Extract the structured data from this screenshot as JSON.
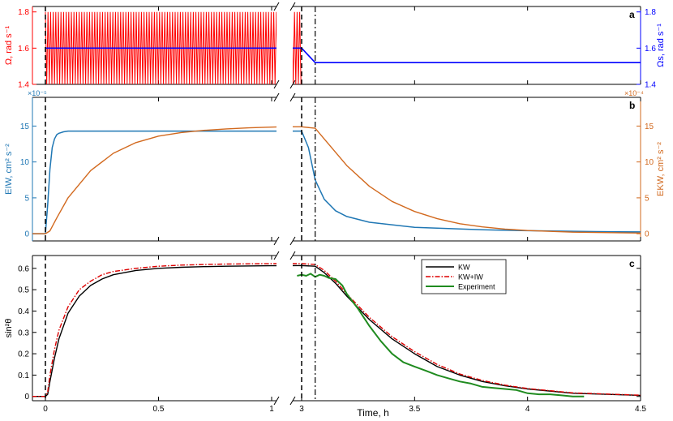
{
  "colors": {
    "omega": "#ff0000",
    "omega_s": "#0000ff",
    "e_iw": "#1f77b4",
    "e_kw": "#d2691e",
    "kw": "#000000",
    "kw_iw": "#dd0000",
    "experiment": "#1f8b1f",
    "axis": "#000000",
    "dash": "#000000"
  },
  "xaxis": {
    "label": "Time, h",
    "left_ticks": [
      "0",
      "0.5",
      "1"
    ],
    "right_ticks": [
      "3",
      "3.5",
      "4",
      "4.5"
    ],
    "left_range": [
      0,
      1.05
    ],
    "right_range": [
      2.98,
      4.5
    ],
    "break": true
  },
  "markers": {
    "dashed_times": [
      0,
      3.0
    ],
    "dashdot_times": [
      3.06
    ]
  },
  "chart_data": [
    {
      "type": "line",
      "panel": "a",
      "ylabel_left": "Ω, rad s⁻¹",
      "ylabel_right": "Ωs, rad s⁻¹",
      "ylim": [
        1.4,
        1.83
      ],
      "yticks_left": [
        "1.4",
        "1.6",
        "1.8"
      ],
      "yticks_right": [
        "1.4",
        "1.6",
        "1.8"
      ],
      "series": [
        {
          "name": "Ω",
          "style": "oscillating",
          "mean": 1.6,
          "amplitude": 0.2,
          "x_start": 0,
          "x_end": 3.0
        },
        {
          "name": "Ωs",
          "x": [
            0,
            3.0,
            3.06,
            4.5
          ],
          "y": [
            1.6,
            1.6,
            1.52,
            1.52
          ]
        }
      ]
    },
    {
      "type": "line",
      "panel": "b",
      "ylabel_left": "EIW, cm² s⁻²",
      "ylabel_right": "EKW, cm² s⁻²",
      "exponent_left": "×10⁻⁵",
      "exponent_right": "×10⁻⁴",
      "ylim": [
        -1,
        19
      ],
      "yticks_left": [
        "0",
        "5",
        "10",
        "15"
      ],
      "yticks_right": [
        "0",
        "5",
        "10",
        "15"
      ],
      "series": [
        {
          "name": "EIW",
          "x": [
            -0.06,
            0,
            0.01,
            0.02,
            0.03,
            0.04,
            0.05,
            0.06,
            0.08,
            0.1,
            0.2,
            0.5,
            1.0,
            1.05,
            2.98,
            3.0,
            3.03,
            3.06,
            3.1,
            3.15,
            3.2,
            3.3,
            3.5,
            3.8,
            4.0,
            4.3,
            4.5
          ],
          "y": [
            0,
            0,
            4,
            9,
            12,
            13.2,
            13.8,
            14.0,
            14.2,
            14.3,
            14.3,
            14.3,
            14.3,
            14.3,
            14.3,
            14.3,
            12,
            7.5,
            4.8,
            3.2,
            2.4,
            1.6,
            0.9,
            0.55,
            0.42,
            0.3,
            0.25
          ],
          "style": "thick"
        },
        {
          "name": "EKW",
          "x": [
            -0.06,
            0,
            0.02,
            0.05,
            0.1,
            0.2,
            0.3,
            0.4,
            0.5,
            0.6,
            0.7,
            0.8,
            0.9,
            1.0,
            1.05,
            2.98,
            3.0,
            3.06,
            3.1,
            3.2,
            3.3,
            3.4,
            3.5,
            3.6,
            3.7,
            3.8,
            3.9,
            4.0,
            4.2,
            4.5
          ],
          "y": [
            0,
            0,
            0.4,
            2.2,
            5.0,
            8.8,
            11.2,
            12.7,
            13.6,
            14.1,
            14.4,
            14.6,
            14.75,
            14.85,
            14.9,
            14.9,
            14.9,
            14.7,
            13.2,
            9.5,
            6.6,
            4.5,
            3.1,
            2.1,
            1.4,
            0.95,
            0.65,
            0.45,
            0.22,
            0.1
          ]
        }
      ]
    },
    {
      "type": "line",
      "panel": "c",
      "ylabel_left": "sin²θ",
      "ylim": [
        -0.02,
        0.66
      ],
      "yticks_left": [
        "0",
        "0.1",
        "0.2",
        "0.3",
        "0.4",
        "0.5",
        "0.6"
      ],
      "legend_placement": "top-right-inset",
      "series": [
        {
          "name": "KW",
          "x": [
            -0.06,
            0,
            0.01,
            0.02,
            0.04,
            0.06,
            0.1,
            0.15,
            0.2,
            0.25,
            0.3,
            0.4,
            0.5,
            0.6,
            0.7,
            0.8,
            1.0,
            1.05,
            2.98,
            3.0,
            3.06,
            3.1,
            3.15,
            3.2,
            3.3,
            3.4,
            3.5,
            3.6,
            3.7,
            3.8,
            3.9,
            4.0,
            4.2,
            4.5
          ],
          "y": [
            0,
            0,
            0.01,
            0.07,
            0.18,
            0.27,
            0.39,
            0.47,
            0.52,
            0.55,
            0.57,
            0.59,
            0.6,
            0.605,
            0.608,
            0.61,
            0.612,
            0.612,
            0.613,
            0.613,
            0.61,
            0.58,
            0.53,
            0.47,
            0.36,
            0.27,
            0.2,
            0.14,
            0.1,
            0.07,
            0.05,
            0.035,
            0.015,
            0.005
          ]
        },
        {
          "name": "KW+IW",
          "x": [
            -0.06,
            0,
            0.01,
            0.02,
            0.04,
            0.06,
            0.1,
            0.15,
            0.2,
            0.25,
            0.3,
            0.4,
            0.5,
            0.6,
            0.7,
            0.8,
            1.0,
            1.05,
            2.98,
            3.0,
            3.06,
            3.1,
            3.15,
            3.2,
            3.3,
            3.4,
            3.5,
            3.6,
            3.7,
            3.8,
            3.9,
            4.0,
            4.2,
            4.5
          ],
          "y": [
            0,
            0,
            0.02,
            0.1,
            0.22,
            0.31,
            0.42,
            0.5,
            0.54,
            0.57,
            0.585,
            0.6,
            0.61,
            0.615,
            0.618,
            0.62,
            0.622,
            0.622,
            0.622,
            0.622,
            0.618,
            0.59,
            0.54,
            0.48,
            0.37,
            0.28,
            0.21,
            0.15,
            0.105,
            0.075,
            0.053,
            0.037,
            0.017,
            0.006
          ],
          "style": "dashdot"
        },
        {
          "name": "Experiment",
          "x": [
            2.98,
            3.0,
            3.02,
            3.04,
            3.06,
            3.08,
            3.1,
            3.12,
            3.15,
            3.18,
            3.2,
            3.25,
            3.3,
            3.35,
            3.4,
            3.45,
            3.5,
            3.55,
            3.6,
            3.65,
            3.7,
            3.75,
            3.8,
            3.85,
            3.9,
            3.95,
            4.0,
            4.05,
            4.1,
            4.15,
            4.2,
            4.25
          ],
          "y": [
            0.565,
            0.57,
            0.565,
            0.575,
            0.56,
            0.57,
            0.565,
            0.555,
            0.55,
            0.52,
            0.48,
            0.41,
            0.33,
            0.26,
            0.2,
            0.16,
            0.14,
            0.12,
            0.1,
            0.085,
            0.07,
            0.06,
            0.045,
            0.04,
            0.035,
            0.03,
            0.015,
            0.01,
            0.01,
            0.005,
            0.0,
            0.0
          ]
        }
      ]
    }
  ],
  "panel_labels": [
    "a",
    "b",
    "c"
  ]
}
